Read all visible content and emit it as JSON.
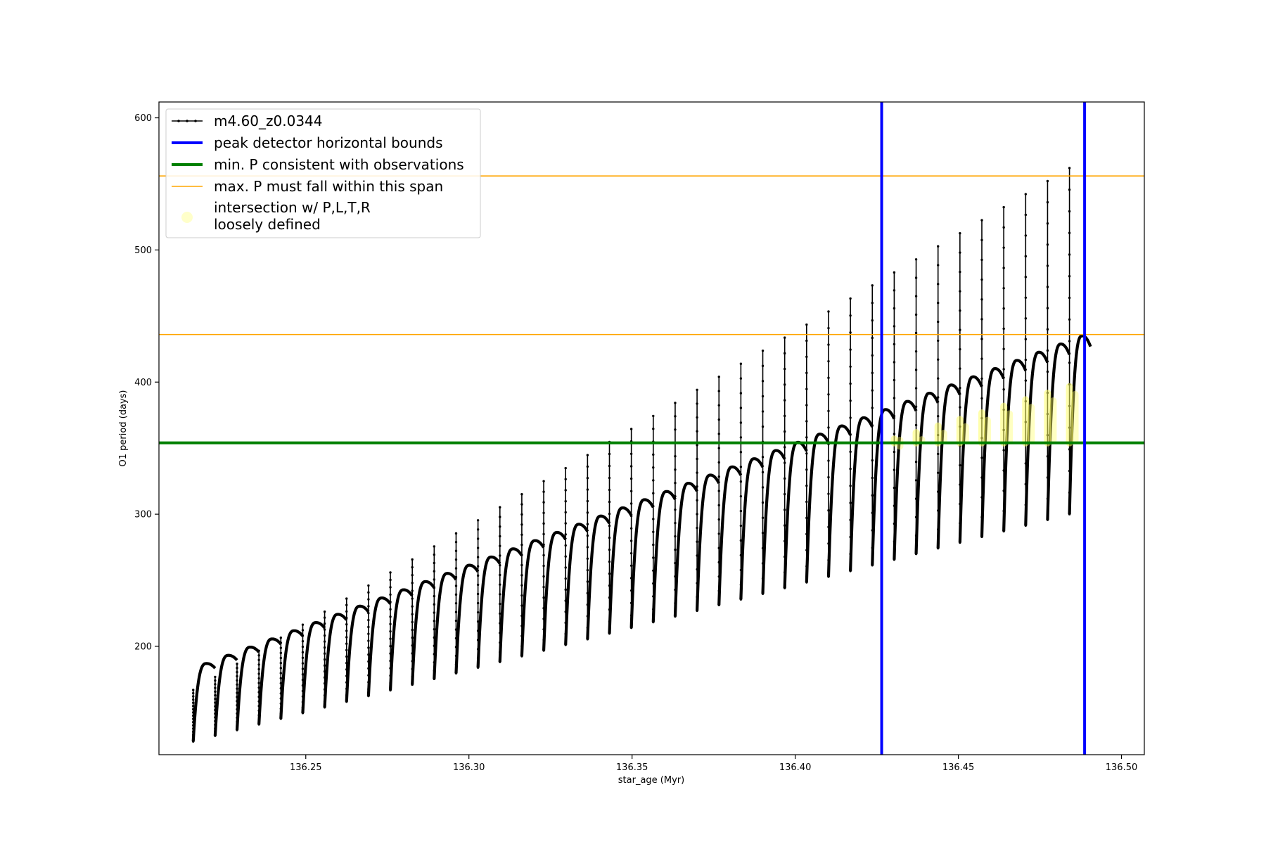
{
  "chart_data": {
    "type": "line",
    "xlabel": "star_age (Myr)",
    "ylabel": "O1 period (days)",
    "xlim": [
      136.205,
      136.507
    ],
    "ylim": [
      118,
      612
    ],
    "xticks": [
      136.25,
      136.3,
      136.35,
      136.4,
      136.45,
      136.5
    ],
    "xtick_labels": [
      "136.25",
      "136.30",
      "136.35",
      "136.40",
      "136.45",
      "136.50"
    ],
    "yticks": [
      200,
      300,
      400,
      500,
      600
    ],
    "ytick_labels": [
      "200",
      "300",
      "400",
      "500",
      "600"
    ],
    "legend_position": "top-left",
    "legend": [
      {
        "label": "m4.60_z0.0344",
        "color": "#000000",
        "style": "line-dot"
      },
      {
        "label": "peak detector horizontal bounds",
        "color": "#0000ff",
        "style": "thick-line"
      },
      {
        "label": "min. P consistent with observations",
        "color": "#008000",
        "style": "thick-line"
      },
      {
        "label": "max. P must fall within this span",
        "color": "#ffa500",
        "style": "thin-line"
      },
      {
        "label": "intersection w/ P,L,T,R",
        "label_line2": "loosely defined",
        "color": "#ffff66",
        "style": "marker"
      }
    ],
    "series": [
      {
        "name": "m4.60_z0.0344",
        "color": "#000000",
        "pulses": {
          "x_first": 136.2155,
          "x_step": 0.006714,
          "count": 41,
          "x_last_end": 136.4905,
          "trough_first": 128,
          "trough_last": 300,
          "plateau_first": 187,
          "plateau_last": 435,
          "spike_first": 167,
          "spike_last": 562
        }
      }
    ],
    "vlines": [
      {
        "x": 136.4265,
        "color": "#0000ff"
      },
      {
        "x": 136.4887,
        "color": "#0000ff"
      }
    ],
    "hlines": [
      {
        "y": 354,
        "color": "#008000",
        "role": "min"
      },
      {
        "y": 436,
        "color": "#ffa500",
        "role": "max-low"
      },
      {
        "y": 556,
        "color": "#ffa500",
        "role": "max-high"
      }
    ],
    "highlight": {
      "color": "#ffff66",
      "x_range": [
        136.4265,
        136.4887
      ],
      "y_range": [
        354,
        400
      ]
    }
  }
}
